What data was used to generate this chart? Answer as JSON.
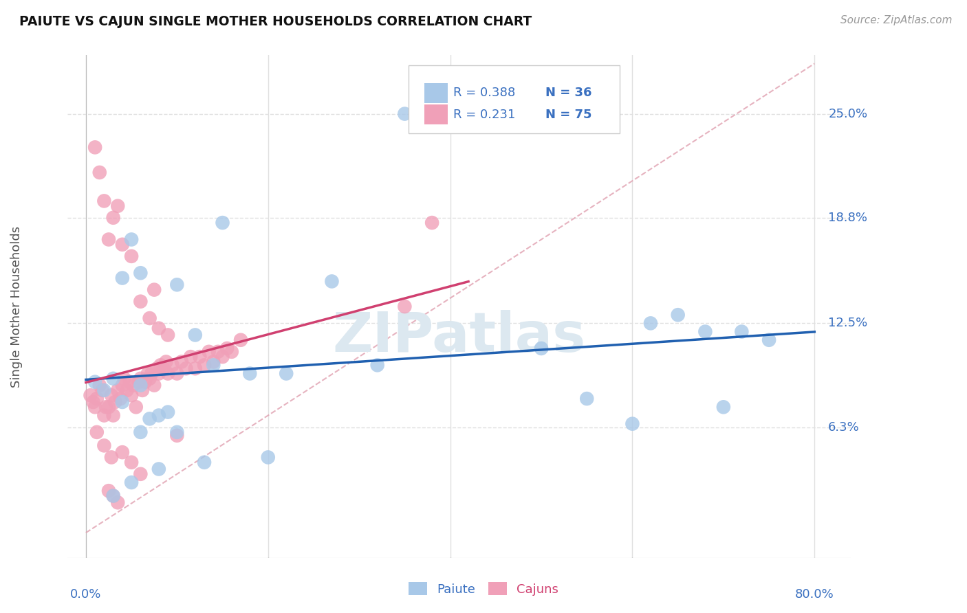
{
  "title": "PAIUTE VS CAJUN SINGLE MOTHER HOUSEHOLDS CORRELATION CHART",
  "source": "Source: ZipAtlas.com",
  "ylabel": "Single Mother Households",
  "ytick_labels": [
    "6.3%",
    "12.5%",
    "18.8%",
    "25.0%"
  ],
  "ytick_values": [
    0.063,
    0.125,
    0.188,
    0.25
  ],
  "xlim": [
    0.0,
    0.8
  ],
  "ylim": [
    0.0,
    0.28
  ],
  "paiute_color": "#a8c8e8",
  "cajun_color": "#f0a0b8",
  "trend_paiute_color": "#2060b0",
  "trend_cajun_color": "#d04070",
  "diag_color": "#d8b0b8",
  "background_color": "#ffffff",
  "grid_color": "#e0e0e0",
  "watermark": "ZIPatlas",
  "paiute_x": [
    0.01,
    0.02,
    0.03,
    0.04,
    0.05,
    0.06,
    0.07,
    0.08,
    0.09,
    0.1,
    0.12,
    0.15,
    0.18,
    0.22,
    0.27,
    0.32,
    0.5,
    0.55,
    0.6,
    0.62,
    0.65,
    0.68,
    0.7,
    0.72,
    0.75,
    0.35,
    0.03,
    0.08,
    0.13,
    0.2,
    0.04,
    0.06,
    0.1,
    0.14,
    0.06,
    0.05
  ],
  "paiute_y": [
    0.09,
    0.085,
    0.092,
    0.078,
    0.175,
    0.088,
    0.068,
    0.07,
    0.072,
    0.06,
    0.118,
    0.185,
    0.095,
    0.095,
    0.15,
    0.1,
    0.11,
    0.08,
    0.065,
    0.125,
    0.13,
    0.12,
    0.075,
    0.12,
    0.115,
    0.25,
    0.022,
    0.038,
    0.042,
    0.045,
    0.152,
    0.155,
    0.148,
    0.1,
    0.06,
    0.03
  ],
  "cajun_x": [
    0.005,
    0.008,
    0.01,
    0.012,
    0.015,
    0.018,
    0.02,
    0.022,
    0.025,
    0.028,
    0.03,
    0.032,
    0.035,
    0.038,
    0.04,
    0.042,
    0.045,
    0.048,
    0.05,
    0.052,
    0.055,
    0.058,
    0.06,
    0.062,
    0.065,
    0.068,
    0.07,
    0.072,
    0.075,
    0.078,
    0.08,
    0.082,
    0.085,
    0.088,
    0.09,
    0.095,
    0.1,
    0.105,
    0.11,
    0.115,
    0.12,
    0.125,
    0.13,
    0.135,
    0.14,
    0.145,
    0.15,
    0.155,
    0.16,
    0.17,
    0.01,
    0.015,
    0.02,
    0.025,
    0.03,
    0.035,
    0.04,
    0.05,
    0.06,
    0.07,
    0.08,
    0.09,
    0.1,
    0.04,
    0.05,
    0.06,
    0.025,
    0.03,
    0.035,
    0.075,
    0.35,
    0.38,
    0.012,
    0.02,
    0.028
  ],
  "cajun_y": [
    0.082,
    0.078,
    0.075,
    0.08,
    0.088,
    0.085,
    0.07,
    0.075,
    0.075,
    0.082,
    0.07,
    0.078,
    0.085,
    0.08,
    0.088,
    0.092,
    0.085,
    0.09,
    0.082,
    0.088,
    0.075,
    0.09,
    0.092,
    0.085,
    0.09,
    0.095,
    0.092,
    0.095,
    0.088,
    0.098,
    0.095,
    0.1,
    0.098,
    0.102,
    0.095,
    0.1,
    0.095,
    0.102,
    0.098,
    0.105,
    0.098,
    0.105,
    0.1,
    0.108,
    0.102,
    0.108,
    0.105,
    0.11,
    0.108,
    0.115,
    0.23,
    0.215,
    0.198,
    0.175,
    0.188,
    0.195,
    0.172,
    0.165,
    0.138,
    0.128,
    0.122,
    0.118,
    0.058,
    0.048,
    0.042,
    0.035,
    0.025,
    0.022,
    0.018,
    0.145,
    0.135,
    0.185,
    0.06,
    0.052,
    0.045
  ]
}
